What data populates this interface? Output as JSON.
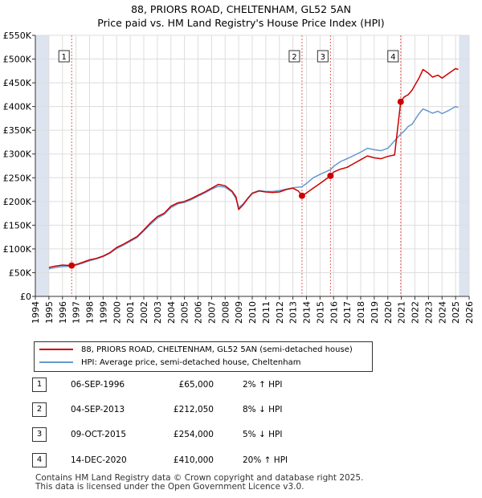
{
  "title_line1": "88, PRIORS ROAD, CHELTENHAM, GL52 5AN",
  "title_line2": "Price paid vs. HM Land Registry's House Price Index (HPI)",
  "colors": {
    "property": "#cc0000",
    "hpi": "#6699cc",
    "shade": "#dde4f0",
    "vline": "#e06060"
  },
  "chart_data": {
    "type": "line",
    "xlim": [
      1994,
      2026
    ],
    "ylim": [
      0,
      550000
    ],
    "x_ticks": [
      1994,
      1995,
      1996,
      1997,
      1998,
      1999,
      2000,
      2001,
      2002,
      2003,
      2004,
      2005,
      2006,
      2007,
      2008,
      2009,
      2010,
      2011,
      2012,
      2013,
      2014,
      2015,
      2016,
      2017,
      2018,
      2019,
      2020,
      2021,
      2022,
      2023,
      2024,
      2025,
      2026
    ],
    "y_ticks": [
      {
        "value": 0,
        "label": "£0"
      },
      {
        "value": 50000,
        "label": "£50K"
      },
      {
        "value": 100000,
        "label": "£100K"
      },
      {
        "value": 150000,
        "label": "£150K"
      },
      {
        "value": 200000,
        "label": "£200K"
      },
      {
        "value": 250000,
        "label": "£250K"
      },
      {
        "value": 300000,
        "label": "£300K"
      },
      {
        "value": 350000,
        "label": "£350K"
      },
      {
        "value": 400000,
        "label": "£400K"
      },
      {
        "value": 450000,
        "label": "£450K"
      },
      {
        "value": 500000,
        "label": "£500K"
      },
      {
        "value": 550000,
        "label": "£550K"
      }
    ],
    "grid": true,
    "series": [
      {
        "name": "88, PRIORS ROAD, CHELTENHAM, GL52 5AN (semi-detached house)",
        "points": [
          [
            1995.0,
            61000
          ],
          [
            1995.5,
            64000
          ],
          [
            1996.0,
            66000
          ],
          [
            1996.68,
            65000
          ],
          [
            1997.0,
            67000
          ],
          [
            1997.5,
            72000
          ],
          [
            1998.0,
            77000
          ],
          [
            1998.5,
            80000
          ],
          [
            1999.0,
            85000
          ],
          [
            1999.5,
            92000
          ],
          [
            2000.0,
            103000
          ],
          [
            2000.5,
            110000
          ],
          [
            2001.0,
            118000
          ],
          [
            2001.5,
            126000
          ],
          [
            2002.0,
            140000
          ],
          [
            2002.5,
            155000
          ],
          [
            2003.0,
            168000
          ],
          [
            2003.5,
            175000
          ],
          [
            2004.0,
            190000
          ],
          [
            2004.5,
            197000
          ],
          [
            2005.0,
            200000
          ],
          [
            2005.5,
            206000
          ],
          [
            2006.0,
            213000
          ],
          [
            2006.5,
            220000
          ],
          [
            2007.0,
            228000
          ],
          [
            2007.5,
            236000
          ],
          [
            2008.0,
            233000
          ],
          [
            2008.5,
            222000
          ],
          [
            2008.8,
            210000
          ],
          [
            2009.0,
            183000
          ],
          [
            2009.3,
            192000
          ],
          [
            2009.7,
            207000
          ],
          [
            2010.0,
            217000
          ],
          [
            2010.5,
            222000
          ],
          [
            2011.0,
            220000
          ],
          [
            2011.5,
            219000
          ],
          [
            2012.0,
            220000
          ],
          [
            2012.5,
            225000
          ],
          [
            2013.0,
            228000
          ],
          [
            2013.4,
            222000
          ],
          [
            2013.67,
            212050
          ],
          [
            2014.0,
            218000
          ],
          [
            2014.5,
            228000
          ],
          [
            2015.0,
            238000
          ],
          [
            2015.77,
            254000
          ],
          [
            2016.0,
            262000
          ],
          [
            2016.5,
            268000
          ],
          [
            2017.0,
            272000
          ],
          [
            2017.5,
            280000
          ],
          [
            2018.0,
            288000
          ],
          [
            2018.5,
            296000
          ],
          [
            2019.0,
            292000
          ],
          [
            2019.5,
            290000
          ],
          [
            2020.0,
            295000
          ],
          [
            2020.5,
            298000
          ],
          [
            2020.95,
            410000
          ],
          [
            2021.2,
            420000
          ],
          [
            2021.5,
            425000
          ],
          [
            2021.8,
            435000
          ],
          [
            2022.0,
            445000
          ],
          [
            2022.3,
            460000
          ],
          [
            2022.6,
            478000
          ],
          [
            2023.0,
            470000
          ],
          [
            2023.3,
            462000
          ],
          [
            2023.7,
            466000
          ],
          [
            2024.0,
            460000
          ],
          [
            2024.5,
            470000
          ],
          [
            2025.0,
            480000
          ],
          [
            2025.2,
            478000
          ]
        ]
      },
      {
        "name": "HPI: Average price, semi-detached house, Cheltenham",
        "points": [
          [
            1995.0,
            58000
          ],
          [
            1995.5,
            61000
          ],
          [
            1996.0,
            63000
          ],
          [
            1996.68,
            63500
          ],
          [
            1997.0,
            66000
          ],
          [
            1997.5,
            70000
          ],
          [
            1998.0,
            75000
          ],
          [
            1998.5,
            79000
          ],
          [
            1999.0,
            84000
          ],
          [
            1999.5,
            91000
          ],
          [
            2000.0,
            101000
          ],
          [
            2000.5,
            108000
          ],
          [
            2001.0,
            116000
          ],
          [
            2001.5,
            124000
          ],
          [
            2002.0,
            138000
          ],
          [
            2002.5,
            152000
          ],
          [
            2003.0,
            165000
          ],
          [
            2003.5,
            173000
          ],
          [
            2004.0,
            187000
          ],
          [
            2004.5,
            195000
          ],
          [
            2005.0,
            198000
          ],
          [
            2005.5,
            204000
          ],
          [
            2006.0,
            211000
          ],
          [
            2006.5,
            218000
          ],
          [
            2007.0,
            226000
          ],
          [
            2007.5,
            232000
          ],
          [
            2008.0,
            230000
          ],
          [
            2008.5,
            220000
          ],
          [
            2008.8,
            206000
          ],
          [
            2009.0,
            187000
          ],
          [
            2009.3,
            194000
          ],
          [
            2009.7,
            208000
          ],
          [
            2010.0,
            218000
          ],
          [
            2010.5,
            223000
          ],
          [
            2011.0,
            221000
          ],
          [
            2011.5,
            221000
          ],
          [
            2012.0,
            223000
          ],
          [
            2012.5,
            226000
          ],
          [
            2013.0,
            229000
          ],
          [
            2013.67,
            231000
          ],
          [
            2014.0,
            238000
          ],
          [
            2014.5,
            250000
          ],
          [
            2015.0,
            257000
          ],
          [
            2015.77,
            267000
          ],
          [
            2016.0,
            274000
          ],
          [
            2016.5,
            284000
          ],
          [
            2017.0,
            290000
          ],
          [
            2017.5,
            297000
          ],
          [
            2018.0,
            304000
          ],
          [
            2018.5,
            312000
          ],
          [
            2019.0,
            309000
          ],
          [
            2019.5,
            307000
          ],
          [
            2020.0,
            312000
          ],
          [
            2020.95,
            342000
          ],
          [
            2021.2,
            348000
          ],
          [
            2021.5,
            358000
          ],
          [
            2021.8,
            363000
          ],
          [
            2022.0,
            372000
          ],
          [
            2022.3,
            385000
          ],
          [
            2022.6,
            395000
          ],
          [
            2023.0,
            390000
          ],
          [
            2023.3,
            386000
          ],
          [
            2023.7,
            390000
          ],
          [
            2024.0,
            385000
          ],
          [
            2024.5,
            392000
          ],
          [
            2025.0,
            400000
          ],
          [
            2025.2,
            398000
          ]
        ]
      }
    ],
    "sales": [
      {
        "label": "1",
        "x": 1996.68,
        "y": 65000
      },
      {
        "label": "2",
        "x": 2013.67,
        "y": 212050
      },
      {
        "label": "3",
        "x": 2015.77,
        "y": 254000
      },
      {
        "label": "4",
        "x": 2020.95,
        "y": 410000
      }
    ],
    "shaded_ranges": [
      [
        1994,
        1995
      ],
      [
        2025.25,
        2026
      ]
    ]
  },
  "legend": {
    "property_label": "88, PRIORS ROAD, CHELTENHAM, GL52 5AN (semi-detached house)",
    "hpi_label": "HPI: Average price, semi-detached house, Cheltenham"
  },
  "transactions": [
    {
      "num": "1",
      "date": "06-SEP-1996",
      "price": "£65,000",
      "hpi": "2% ↑ HPI"
    },
    {
      "num": "2",
      "date": "04-SEP-2013",
      "price": "£212,050",
      "hpi": "8% ↓ HPI"
    },
    {
      "num": "3",
      "date": "09-OCT-2015",
      "price": "£254,000",
      "hpi": "5% ↓ HPI"
    },
    {
      "num": "4",
      "date": "14-DEC-2020",
      "price": "£410,000",
      "hpi": "20% ↑ HPI"
    }
  ],
  "footer_line1": "Contains HM Land Registry data © Crown copyright and database right 2025.",
  "footer_line2": "This data is licensed under the Open Government Licence v3.0."
}
